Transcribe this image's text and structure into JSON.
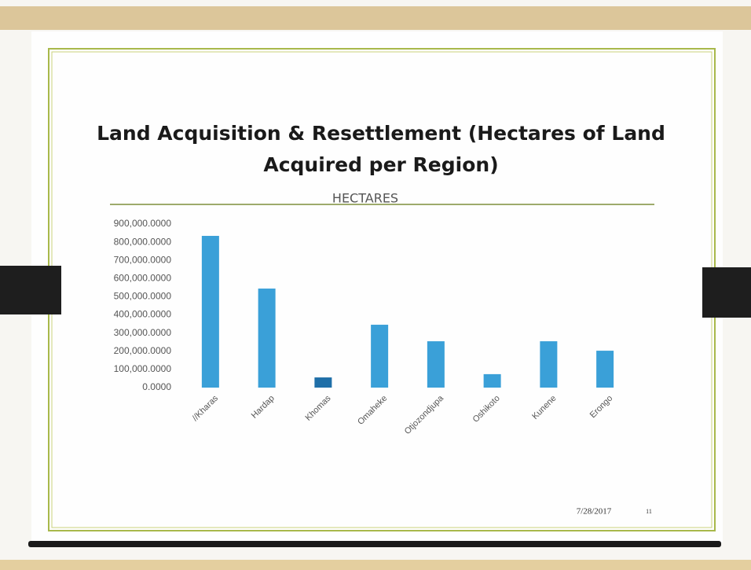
{
  "chart_data": {
    "type": "bar",
    "title": "Land Acquisition & Resettlement (Hectares of Land Acquired per Region)",
    "subtitle": "HECTARES",
    "categories": [
      "//Kharas",
      "Hardap",
      "Khomas",
      "Omaheke",
      "Otjozondjupa",
      "Oshikoto",
      "Kunene",
      "Erongo"
    ],
    "values": [
      835000,
      545000,
      56000,
      346000,
      255000,
      74000,
      255000,
      203000
    ],
    "colors": [
      "#3aa0d8",
      "#3aa0d8",
      "#1f6fa8",
      "#3aa0d8",
      "#3aa0d8",
      "#3aa0d8",
      "#3aa0d8",
      "#3aa0d8"
    ],
    "ylim": [
      0,
      900000
    ],
    "yticks": [
      {
        "value": 0,
        "label": "0.0000"
      },
      {
        "value": 100000,
        "label": "100,000.0000"
      },
      {
        "value": 200000,
        "label": "200,000.0000"
      },
      {
        "value": 300000,
        "label": "300,000.0000"
      },
      {
        "value": 400000,
        "label": "400,000.0000"
      },
      {
        "value": 500000,
        "label": "500,000.0000"
      },
      {
        "value": 600000,
        "label": "600,000.0000"
      },
      {
        "value": 700000,
        "label": "700,000.0000"
      },
      {
        "value": 800000,
        "label": "800,000.0000"
      },
      {
        "value": 900000,
        "label": "900,000.0000"
      }
    ],
    "grid": false,
    "date": "7/28/2017",
    "slide_number": "11"
  }
}
